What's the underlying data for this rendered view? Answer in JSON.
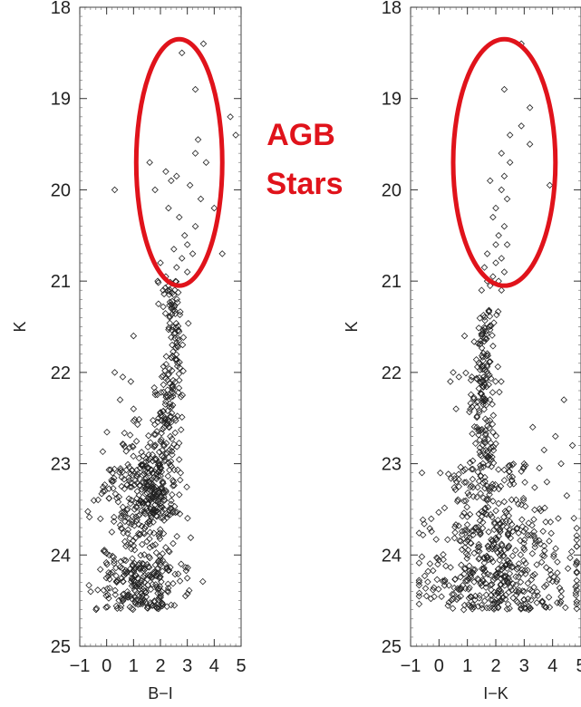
{
  "annotation": {
    "line1": "AGB",
    "line2": "Stars",
    "color": "#e0131b"
  },
  "chart_data": [
    {
      "type": "scatter",
      "title": "",
      "xlabel": "B−I",
      "ylabel": "K",
      "xlim": [
        -1,
        5
      ],
      "ylim": [
        25,
        18
      ],
      "y_inverted": true,
      "grid": false,
      "xticks": [
        -1,
        0,
        1,
        2,
        3,
        4,
        5
      ],
      "xtick_labels": [
        "−1",
        "0",
        "1",
        "2",
        "3",
        "4",
        "5"
      ],
      "yticks": [
        18,
        19,
        20,
        21,
        22,
        23,
        24,
        25
      ],
      "ytick_labels": [
        "18",
        "19",
        "20",
        "21",
        "22",
        "23",
        "24",
        "25"
      ],
      "marker": "diamond-open",
      "highlight_ellipse": {
        "cx": 2.7,
        "cy": 19.7,
        "rx": 1.6,
        "ry": 1.35,
        "color": "#e0131b"
      },
      "points": [
        [
          3.6,
          18.4
        ],
        [
          2.8,
          18.5
        ],
        [
          3.3,
          18.9
        ],
        [
          4.6,
          19.2
        ],
        [
          4.8,
          19.4
        ],
        [
          3.4,
          19.45
        ],
        [
          3.3,
          19.6
        ],
        [
          1.6,
          19.7
        ],
        [
          3.7,
          19.7
        ],
        [
          2.2,
          19.8
        ],
        [
          2.4,
          19.9
        ],
        [
          2.6,
          19.85
        ],
        [
          0.3,
          20.0
        ],
        [
          3.1,
          19.95
        ],
        [
          1.8,
          20.0
        ],
        [
          3.5,
          20.1
        ],
        [
          2.3,
          20.2
        ],
        [
          4.0,
          20.2
        ],
        [
          2.7,
          20.3
        ],
        [
          3.3,
          20.4
        ],
        [
          2.9,
          20.5
        ],
        [
          3.0,
          20.6
        ],
        [
          2.5,
          20.65
        ],
        [
          3.2,
          20.7
        ],
        [
          4.3,
          20.7
        ],
        [
          2.8,
          20.75
        ],
        [
          2.0,
          20.8
        ],
        [
          2.6,
          20.85
        ],
        [
          3.0,
          20.9
        ],
        [
          2.2,
          20.95
        ],
        [
          1.9,
          21.0
        ],
        [
          2.3,
          21.05
        ],
        [
          2.1,
          21.1
        ],
        [
          2.5,
          21.15
        ],
        [
          1.0,
          21.6
        ],
        [
          0.6,
          22.05
        ],
        [
          0.3,
          22.0
        ],
        [
          0.9,
          22.1
        ],
        [
          0.5,
          22.3
        ],
        [
          1.0,
          22.4
        ]
      ],
      "bulk_regions": [
        {
          "y": [
            21.0,
            21.8
          ],
          "x_center": [
            2.4,
            2.6
          ],
          "width": 0.35,
          "count": 60
        },
        {
          "y": [
            21.8,
            22.8
          ],
          "x_center": [
            2.5,
            2.1
          ],
          "width": 0.5,
          "count": 110
        },
        {
          "y": [
            22.8,
            23.6
          ],
          "x_center": [
            2.1,
            1.8
          ],
          "width": 0.75,
          "count": 140
        },
        {
          "y": [
            23.0,
            24.1
          ],
          "x_center": [
            1.3,
            1.2
          ],
          "width": 1.5,
          "count": 230
        },
        {
          "y": [
            24.1,
            24.6
          ],
          "x_center": [
            1.4,
            1.3
          ],
          "width": 1.6,
          "count": 210
        },
        {
          "y": [
            22.5,
            23.3
          ],
          "x_center": [
            0.8,
            0.8
          ],
          "width": 1.0,
          "count": 35
        }
      ]
    },
    {
      "type": "scatter",
      "title": "",
      "xlabel": "I−K",
      "ylabel": "K",
      "xlim": [
        -1,
        5
      ],
      "ylim": [
        25,
        18
      ],
      "y_inverted": true,
      "grid": false,
      "xticks": [
        -1,
        0,
        1,
        2,
        3,
        4,
        5
      ],
      "xtick_labels": [
        "−1",
        "0",
        "1",
        "2",
        "3",
        "4",
        "5"
      ],
      "yticks": [
        18,
        19,
        20,
        21,
        22,
        23,
        24,
        25
      ],
      "ytick_labels": [
        "18",
        "19",
        "20",
        "21",
        "22",
        "23",
        "24",
        "25"
      ],
      "marker": "diamond-open",
      "highlight_ellipse": {
        "cx": 2.3,
        "cy": 19.7,
        "rx": 1.8,
        "ry": 1.35,
        "color": "#e0131b"
      },
      "points": [
        [
          2.9,
          18.4
        ],
        [
          2.3,
          18.9
        ],
        [
          3.2,
          19.1
        ],
        [
          2.9,
          19.3
        ],
        [
          2.5,
          19.4
        ],
        [
          3.2,
          19.5
        ],
        [
          2.2,
          19.6
        ],
        [
          2.5,
          19.7
        ],
        [
          2.3,
          19.85
        ],
        [
          1.8,
          19.9
        ],
        [
          3.9,
          19.95
        ],
        [
          2.2,
          20.0
        ],
        [
          2.4,
          20.1
        ],
        [
          2.0,
          20.2
        ],
        [
          1.9,
          20.3
        ],
        [
          2.3,
          20.4
        ],
        [
          2.1,
          20.5
        ],
        [
          2.0,
          20.6
        ],
        [
          2.4,
          20.6
        ],
        [
          1.7,
          20.7
        ],
        [
          2.2,
          20.75
        ],
        [
          2.0,
          20.8
        ],
        [
          1.6,
          20.85
        ],
        [
          2.3,
          20.9
        ],
        [
          1.9,
          20.95
        ],
        [
          1.7,
          21.0
        ],
        [
          2.1,
          21.0
        ],
        [
          1.8,
          21.05
        ],
        [
          1.5,
          21.1
        ],
        [
          2.2,
          21.1
        ],
        [
          0.9,
          21.6
        ],
        [
          0.5,
          22.0
        ],
        [
          0.4,
          22.1
        ],
        [
          0.7,
          22.05
        ],
        [
          4.4,
          22.3
        ],
        [
          0.6,
          22.4
        ],
        [
          3.3,
          22.6
        ],
        [
          4.1,
          22.7
        ],
        [
          4.7,
          22.8
        ],
        [
          3.7,
          22.85
        ],
        [
          3.0,
          23.0
        ],
        [
          4.3,
          23.0
        ],
        [
          -0.6,
          23.1
        ],
        [
          3.8,
          23.2
        ],
        [
          4.5,
          23.35
        ],
        [
          2.9,
          23.45
        ],
        [
          4.2,
          23.6
        ]
      ],
      "bulk_regions": [
        {
          "y": [
            21.3,
            22.0
          ],
          "x_center": [
            1.7,
            1.6
          ],
          "width": 0.35,
          "count": 60
        },
        {
          "y": [
            22.0,
            23.0
          ],
          "x_center": [
            1.5,
            1.6
          ],
          "width": 0.55,
          "count": 110
        },
        {
          "y": [
            23.0,
            23.6
          ],
          "x_center": [
            1.7,
            1.9
          ],
          "width": 1.9,
          "count": 120
        },
        {
          "y": [
            23.6,
            24.2
          ],
          "x_center": [
            2.0,
            2.0
          ],
          "width": 2.7,
          "count": 230
        },
        {
          "y": [
            24.2,
            24.6
          ],
          "x_center": [
            2.0,
            2.0
          ],
          "width": 3.0,
          "count": 220
        }
      ]
    }
  ]
}
